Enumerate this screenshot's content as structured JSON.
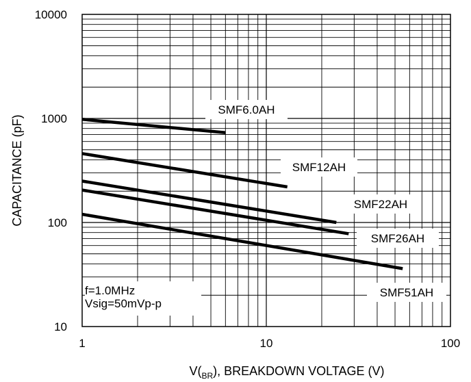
{
  "chart_data": {
    "type": "line",
    "xscale": "log",
    "yscale": "log",
    "xlim": [
      1,
      100
    ],
    "ylim": [
      10,
      10000
    ],
    "grid": true,
    "x_ticks": [
      "1",
      "10",
      "100"
    ],
    "y_ticks": [
      "10",
      "100",
      "1000",
      "10000"
    ],
    "xlabel": {
      "pre": "V",
      "open": "(",
      "sub": "BR",
      "close": ")",
      "post": ", BREAKDOWN VOLTAGE (V)"
    },
    "ylabel": "CAPACITANCE (pF)",
    "annotation": [
      "f=1.0MHz",
      "Vsig=50mVp-p"
    ],
    "series": [
      {
        "name": "SMF6.0AH",
        "x": [
          1,
          6
        ],
        "y": [
          980,
          730
        ]
      },
      {
        "name": "SMF12AH",
        "x": [
          1,
          13
        ],
        "y": [
          460,
          220
        ]
      },
      {
        "name": "SMF22AH",
        "x": [
          1,
          24
        ],
        "y": [
          250,
          100
        ]
      },
      {
        "name": "SMF26AH",
        "x": [
          1,
          28
        ],
        "y": [
          205,
          78
        ]
      },
      {
        "name": "SMF51AH",
        "x": [
          1,
          55
        ],
        "y": [
          120,
          36
        ]
      }
    ]
  }
}
